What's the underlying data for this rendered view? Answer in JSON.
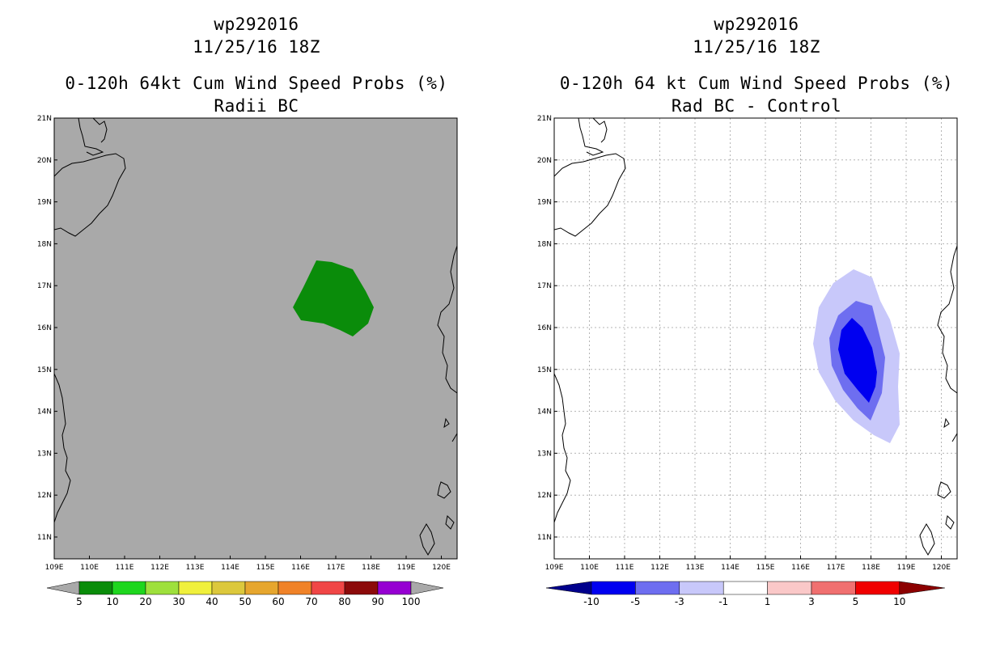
{
  "left_panel": {
    "title_line1": "wp292016",
    "title_line2": "11/25/16 18Z",
    "title_line3": "0-120h 64kt Cum Wind Speed Probs (%)",
    "title_line4": "Radii BC",
    "background_color": "#a9a9a9",
    "region_color": "#0a8c0a",
    "colorbar": {
      "colors": [
        "#0a8c0a",
        "#1ed61e",
        "#9ee03c",
        "#f0f03c",
        "#dcc83c",
        "#e6a62e",
        "#f08228",
        "#f04646",
        "#8c0a0a",
        "#9600d2"
      ],
      "labels": [
        "5",
        "10",
        "20",
        "30",
        "40",
        "50",
        "60",
        "70",
        "80",
        "90",
        "100"
      ],
      "end_color": "#a9a9a9"
    }
  },
  "right_panel": {
    "title_line1": "wp292016",
    "title_line2": "11/25/16 18Z",
    "title_line3": "0-120h 64 kt Cum Wind Speed Probs (%)",
    "title_line4": "Rad BC - Control",
    "contour_colors": [
      "#c8c8fa",
      "#6e6ef0",
      "#0000f0"
    ],
    "colorbar": {
      "colors": [
        "#0000f0",
        "#6e6ef0",
        "#c8c8fa",
        "#ffffff",
        "#fac8c8",
        "#f07070",
        "#f00000"
      ],
      "labels": [
        "-10",
        "-5",
        "-3",
        "-1",
        "1",
        "3",
        "5",
        "10"
      ],
      "low_end_color": "#00008c",
      "high_end_color": "#8c0000"
    }
  },
  "axes": {
    "lon_labels": [
      "109E",
      "110E",
      "111E",
      "112E",
      "113E",
      "114E",
      "115E",
      "116E",
      "117E",
      "118E",
      "119E",
      "120E"
    ],
    "lat_labels": [
      "21N",
      "20N",
      "19N",
      "18N",
      "17N",
      "16N",
      "15N",
      "14N",
      "13N",
      "12N",
      "11N"
    ]
  }
}
